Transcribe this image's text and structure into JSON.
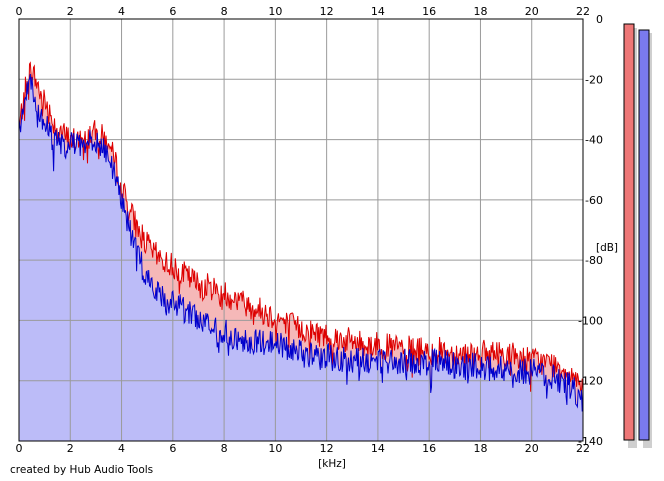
{
  "footer_text": "created by Hub Audio Tools",
  "colors": {
    "red_line": "#dd0000",
    "red_fill": "#f5b8b8",
    "blue_line": "#0000cc",
    "blue_fill": "#bcbcf8",
    "grid": "#9a9a9a",
    "meter_red": "#ee7777",
    "meter_blue": "#7a7aee"
  },
  "chart_data": {
    "type": "area",
    "xlabel": "[kHz]",
    "ylabel": "[dB]",
    "xlim": [
      0,
      22
    ],
    "ylim": [
      -140,
      0
    ],
    "x_ticks": [
      "0",
      "2",
      "4",
      "6",
      "8",
      "10",
      "12",
      "14",
      "16",
      "18",
      "20",
      "22"
    ],
    "y_ticks": [
      "0",
      "-20",
      "-40",
      "-60",
      "-80",
      "-100",
      "-120",
      "-140"
    ],
    "grid": true,
    "x": [
      0,
      0.2,
      0.4,
      0.6,
      0.8,
      1.0,
      1.2,
      1.4,
      1.6,
      1.8,
      2.0,
      2.2,
      2.4,
      2.6,
      2.8,
      3.0,
      3.2,
      3.4,
      3.6,
      3.8,
      4.0,
      4.2,
      4.4,
      4.6,
      4.8,
      5.0,
      5.2,
      5.4,
      5.6,
      5.8,
      6.0,
      6.5,
      7.0,
      7.5,
      8.0,
      8.5,
      9.0,
      9.5,
      10.0,
      10.5,
      11.0,
      11.5,
      12.0,
      12.5,
      13.0,
      13.5,
      14.0,
      14.5,
      15.0,
      15.5,
      16.0,
      16.5,
      17.0,
      17.5,
      18.0,
      18.5,
      19.0,
      19.5,
      20.0,
      20.5,
      21.0,
      21.5,
      22.0
    ],
    "series": [
      {
        "color": "red",
        "values": [
          -37,
          -25,
          -17,
          -19,
          -24,
          -27,
          -31,
          -35,
          -37,
          -39,
          -40,
          -40,
          -41,
          -40,
          -38,
          -38,
          -39,
          -40,
          -44,
          -49,
          -55,
          -61,
          -65,
          -69,
          -72,
          -75,
          -77,
          -79,
          -80,
          -81,
          -82,
          -85,
          -88,
          -89,
          -91,
          -93,
          -95,
          -97,
          -99,
          -101,
          -103,
          -104,
          -105,
          -106,
          -107,
          -108,
          -108,
          -109,
          -109,
          -110,
          -110,
          -110,
          -111,
          -111,
          -111,
          -111,
          -111,
          -112,
          -113,
          -114,
          -115,
          -117,
          -121
        ]
      },
      {
        "color": "blue",
        "values": [
          -37,
          -27,
          -22,
          -25,
          -30,
          -34,
          -38,
          -40,
          -42,
          -42,
          -42,
          -42,
          -41,
          -40,
          -39,
          -40,
          -42,
          -44,
          -48,
          -53,
          -59,
          -66,
          -72,
          -78,
          -82,
          -86,
          -89,
          -91,
          -92,
          -93,
          -94,
          -97,
          -100,
          -102,
          -104,
          -106,
          -107,
          -107,
          -108,
          -109,
          -111,
          -112,
          -112,
          -113,
          -113,
          -113,
          -114,
          -114,
          -114,
          -114,
          -114,
          -114,
          -115,
          -115,
          -115,
          -116,
          -116,
          -117,
          -117,
          -118,
          -119,
          -122,
          -126
        ]
      }
    ]
  }
}
